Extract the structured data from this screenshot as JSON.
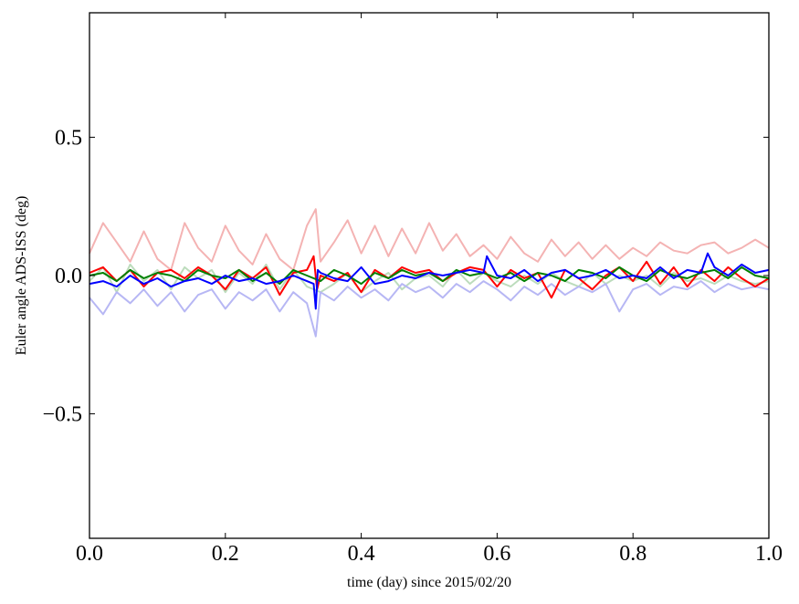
{
  "chart_data": {
    "type": "line",
    "title": "",
    "xlabel": "time (day) since 2015/02/20",
    "ylabel": "Euler angle ADS-ISS (deg)",
    "xlim": [
      0.0,
      1.0
    ],
    "ylim": [
      -0.95,
      0.95
    ],
    "xticks": [
      0.0,
      0.2,
      0.4,
      0.6,
      0.8,
      1.0
    ],
    "xtick_labels": [
      "0.0",
      "0.2",
      "0.4",
      "0.6",
      "0.8",
      "1.0"
    ],
    "yticks": [
      -0.5,
      0.0,
      0.5
    ],
    "ytick_labels": [
      "−0.5",
      "0.0",
      "0.5"
    ],
    "grid": false,
    "legend": "none",
    "series": [
      {
        "color": "#f4b3b3",
        "x": [
          0.0,
          0.02,
          0.04,
          0.06,
          0.08,
          0.1,
          0.12,
          0.14,
          0.16,
          0.18,
          0.2,
          0.22,
          0.24,
          0.26,
          0.28,
          0.3,
          0.32,
          0.333,
          0.34,
          0.36,
          0.38,
          0.4,
          0.42,
          0.44,
          0.46,
          0.48,
          0.5,
          0.52,
          0.54,
          0.56,
          0.58,
          0.6,
          0.62,
          0.64,
          0.66,
          0.68,
          0.7,
          0.72,
          0.74,
          0.76,
          0.78,
          0.8,
          0.82,
          0.84,
          0.86,
          0.88,
          0.9,
          0.92,
          0.94,
          0.96,
          0.98,
          1.0
        ],
        "values": [
          0.08,
          0.19,
          0.12,
          0.05,
          0.16,
          0.06,
          0.02,
          0.19,
          0.1,
          0.05,
          0.18,
          0.09,
          0.04,
          0.15,
          0.06,
          0.02,
          0.18,
          0.24,
          0.05,
          0.12,
          0.2,
          0.08,
          0.18,
          0.07,
          0.17,
          0.08,
          0.19,
          0.09,
          0.15,
          0.07,
          0.11,
          0.06,
          0.14,
          0.08,
          0.05,
          0.13,
          0.07,
          0.12,
          0.06,
          0.11,
          0.06,
          0.1,
          0.07,
          0.12,
          0.09,
          0.08,
          0.11,
          0.12,
          0.08,
          0.1,
          0.13,
          0.1
        ]
      },
      {
        "color": "#bcdcbc",
        "x": [
          0.0,
          0.02,
          0.04,
          0.06,
          0.08,
          0.1,
          0.12,
          0.14,
          0.16,
          0.18,
          0.2,
          0.22,
          0.24,
          0.26,
          0.28,
          0.3,
          0.32,
          0.34,
          0.36,
          0.38,
          0.4,
          0.42,
          0.44,
          0.46,
          0.48,
          0.5,
          0.52,
          0.54,
          0.56,
          0.58,
          0.6,
          0.62,
          0.64,
          0.66,
          0.68,
          0.7,
          0.72,
          0.74,
          0.76,
          0.78,
          0.8,
          0.82,
          0.84,
          0.86,
          0.88,
          0.9,
          0.92,
          0.94,
          0.96,
          0.98,
          1.0
        ],
        "values": [
          -0.02,
          0.03,
          -0.06,
          0.04,
          -0.02,
          0.02,
          -0.05,
          0.03,
          -0.01,
          0.02,
          -0.06,
          0.01,
          -0.03,
          0.04,
          -0.05,
          0.02,
          -0.04,
          -0.06,
          -0.03,
          0.01,
          -0.06,
          -0.02,
          0.01,
          -0.05,
          -0.01,
          0.0,
          -0.04,
          0.02,
          -0.03,
          0.01,
          -0.02,
          -0.04,
          0.0,
          -0.03,
          0.01,
          -0.02,
          -0.04,
          0.01,
          -0.03,
          0.0,
          -0.02,
          0.0,
          -0.04,
          0.01,
          -0.02,
          -0.01,
          -0.03,
          0.0,
          -0.02,
          -0.03,
          -0.02
        ]
      },
      {
        "color": "#b7b7f4",
        "x": [
          0.0,
          0.02,
          0.04,
          0.06,
          0.08,
          0.1,
          0.12,
          0.14,
          0.16,
          0.18,
          0.2,
          0.22,
          0.24,
          0.26,
          0.28,
          0.3,
          0.32,
          0.333,
          0.34,
          0.36,
          0.38,
          0.4,
          0.42,
          0.44,
          0.46,
          0.48,
          0.5,
          0.52,
          0.54,
          0.56,
          0.58,
          0.6,
          0.62,
          0.64,
          0.66,
          0.68,
          0.7,
          0.72,
          0.74,
          0.76,
          0.78,
          0.8,
          0.82,
          0.84,
          0.86,
          0.88,
          0.9,
          0.92,
          0.94,
          0.96,
          0.98,
          1.0
        ],
        "values": [
          -0.08,
          -0.14,
          -0.06,
          -0.1,
          -0.05,
          -0.11,
          -0.06,
          -0.13,
          -0.07,
          -0.05,
          -0.12,
          -0.06,
          -0.09,
          -0.05,
          -0.13,
          -0.06,
          -0.1,
          -0.22,
          -0.06,
          -0.09,
          -0.04,
          -0.08,
          -0.05,
          -0.09,
          -0.03,
          -0.06,
          -0.04,
          -0.08,
          -0.03,
          -0.06,
          -0.02,
          -0.05,
          -0.09,
          -0.04,
          -0.07,
          -0.03,
          -0.07,
          -0.04,
          -0.06,
          -0.03,
          -0.13,
          -0.05,
          -0.03,
          -0.07,
          -0.04,
          -0.05,
          -0.02,
          -0.06,
          -0.03,
          -0.05,
          -0.04,
          -0.05
        ]
      },
      {
        "color": "#ff0000",
        "x": [
          0.0,
          0.02,
          0.04,
          0.06,
          0.08,
          0.1,
          0.12,
          0.14,
          0.16,
          0.18,
          0.2,
          0.22,
          0.24,
          0.26,
          0.28,
          0.3,
          0.32,
          0.33,
          0.335,
          0.34,
          0.36,
          0.38,
          0.4,
          0.42,
          0.44,
          0.46,
          0.48,
          0.5,
          0.52,
          0.54,
          0.56,
          0.58,
          0.6,
          0.62,
          0.64,
          0.66,
          0.68,
          0.7,
          0.72,
          0.74,
          0.76,
          0.78,
          0.8,
          0.82,
          0.84,
          0.86,
          0.88,
          0.9,
          0.92,
          0.94,
          0.96,
          0.98,
          1.0
        ],
        "values": [
          0.01,
          0.03,
          -0.02,
          0.02,
          -0.04,
          0.01,
          0.02,
          -0.01,
          0.03,
          0.0,
          -0.05,
          0.02,
          -0.01,
          0.03,
          -0.07,
          0.01,
          0.02,
          0.07,
          -0.05,
          0.0,
          -0.02,
          0.01,
          -0.06,
          0.02,
          -0.01,
          0.03,
          0.01,
          0.02,
          -0.02,
          0.01,
          0.03,
          0.02,
          -0.04,
          0.02,
          -0.01,
          0.01,
          -0.08,
          0.02,
          -0.01,
          -0.05,
          0.0,
          0.03,
          -0.02,
          0.05,
          -0.03,
          0.03,
          -0.04,
          0.02,
          -0.02,
          0.03,
          -0.01,
          -0.04,
          -0.01
        ]
      },
      {
        "color": "#008000",
        "x": [
          0.0,
          0.02,
          0.04,
          0.06,
          0.08,
          0.1,
          0.12,
          0.14,
          0.16,
          0.18,
          0.2,
          0.22,
          0.24,
          0.26,
          0.28,
          0.3,
          0.32,
          0.34,
          0.36,
          0.38,
          0.4,
          0.42,
          0.44,
          0.46,
          0.48,
          0.5,
          0.52,
          0.54,
          0.56,
          0.58,
          0.6,
          0.62,
          0.64,
          0.66,
          0.68,
          0.7,
          0.72,
          0.74,
          0.76,
          0.78,
          0.8,
          0.82,
          0.84,
          0.86,
          0.88,
          0.9,
          0.92,
          0.94,
          0.96,
          0.98,
          1.0
        ],
        "values": [
          0.0,
          0.01,
          -0.02,
          0.02,
          -0.01,
          0.01,
          0.0,
          -0.02,
          0.02,
          0.0,
          -0.01,
          0.02,
          -0.02,
          0.01,
          -0.03,
          0.02,
          0.0,
          -0.02,
          0.02,
          0.0,
          -0.03,
          0.01,
          -0.01,
          0.02,
          0.0,
          0.01,
          -0.02,
          0.02,
          0.0,
          0.01,
          -0.01,
          0.01,
          -0.02,
          0.01,
          0.0,
          -0.02,
          0.02,
          0.01,
          -0.01,
          0.03,
          0.0,
          -0.02,
          0.02,
          0.0,
          -0.01,
          0.01,
          0.02,
          -0.01,
          0.03,
          0.0,
          -0.01
        ]
      },
      {
        "color": "#0000ff",
        "x": [
          0.0,
          0.02,
          0.04,
          0.06,
          0.08,
          0.1,
          0.12,
          0.14,
          0.16,
          0.18,
          0.2,
          0.22,
          0.24,
          0.26,
          0.28,
          0.3,
          0.32,
          0.33,
          0.333,
          0.336,
          0.34,
          0.36,
          0.38,
          0.4,
          0.42,
          0.44,
          0.46,
          0.48,
          0.5,
          0.52,
          0.54,
          0.56,
          0.58,
          0.585,
          0.6,
          0.62,
          0.64,
          0.66,
          0.68,
          0.7,
          0.72,
          0.74,
          0.76,
          0.78,
          0.8,
          0.82,
          0.84,
          0.86,
          0.88,
          0.9,
          0.91,
          0.92,
          0.94,
          0.96,
          0.98,
          1.0
        ],
        "values": [
          -0.03,
          -0.02,
          -0.04,
          0.0,
          -0.03,
          -0.01,
          -0.04,
          -0.02,
          -0.01,
          -0.03,
          0.0,
          -0.02,
          -0.01,
          -0.03,
          -0.02,
          0.0,
          -0.02,
          -0.03,
          -0.12,
          0.02,
          0.01,
          -0.01,
          -0.02,
          0.03,
          -0.03,
          -0.02,
          0.0,
          -0.01,
          0.01,
          0.0,
          0.01,
          0.02,
          0.01,
          0.07,
          0.0,
          -0.01,
          0.02,
          -0.02,
          0.01,
          0.02,
          -0.01,
          0.0,
          0.02,
          -0.01,
          0.0,
          -0.01,
          0.03,
          -0.01,
          0.02,
          0.01,
          0.08,
          0.03,
          0.0,
          0.04,
          0.01,
          0.02
        ]
      }
    ]
  }
}
